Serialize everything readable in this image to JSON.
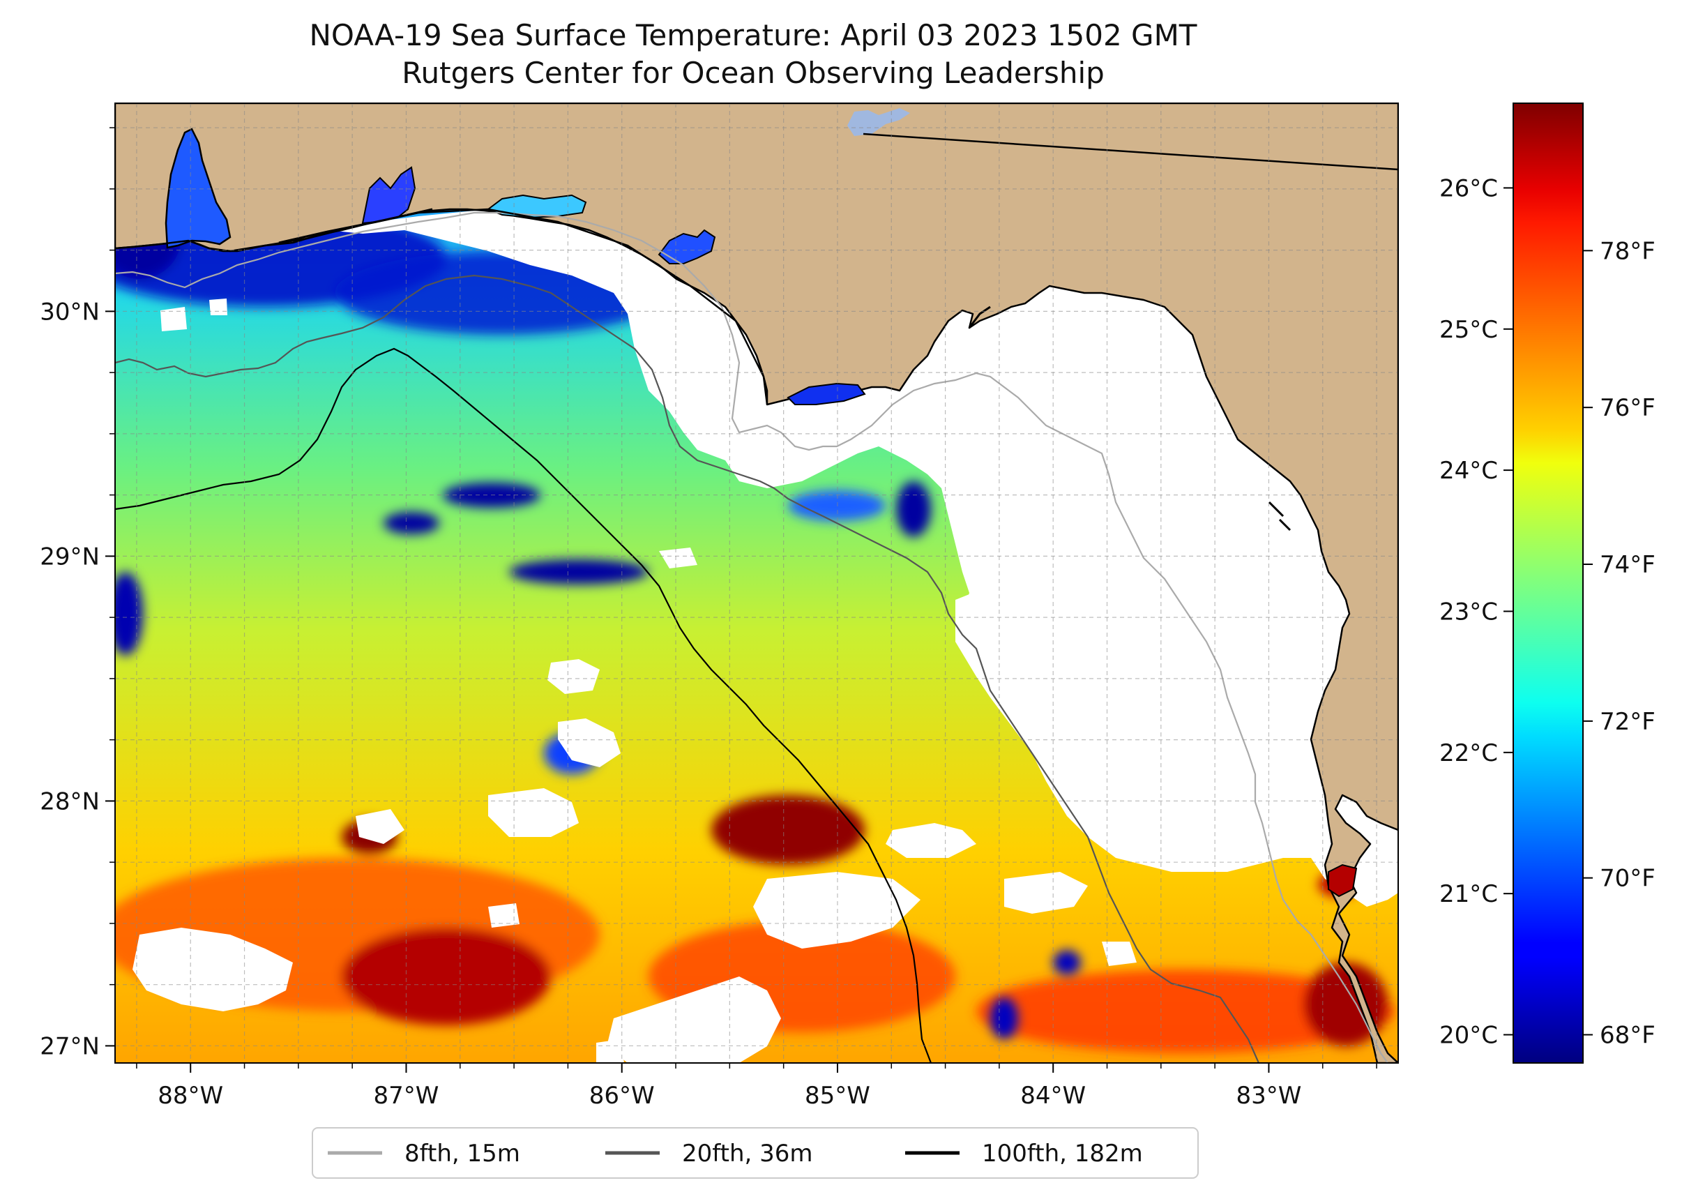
{
  "title": "NOAA-19 Sea Surface Temperature: April 03 2023 1502 GMT",
  "subtitle": "Rutgers Center for Ocean Observing Leadership",
  "map": {
    "lon_range": [
      -88.35,
      -82.4
    ],
    "lat_range": [
      26.93,
      30.85
    ],
    "lon_ticks": [
      {
        "value": -88,
        "label": "88°W"
      },
      {
        "value": -87,
        "label": "87°W"
      },
      {
        "value": -86,
        "label": "86°W"
      },
      {
        "value": -85,
        "label": "85°W"
      },
      {
        "value": -84,
        "label": "84°W"
      },
      {
        "value": -83,
        "label": "83°W"
      }
    ],
    "lat_ticks": [
      {
        "value": 27,
        "label": "27°N"
      },
      {
        "value": 28,
        "label": "28°N"
      },
      {
        "value": 29,
        "label": "29°N"
      },
      {
        "value": 30,
        "label": "30°N"
      }
    ],
    "grid": true,
    "colors": {
      "land": "#d2b48c",
      "no_data": "#ffffff",
      "coast": "#000000"
    }
  },
  "colorbar": {
    "colormap": "jet",
    "celsius_range": [
      19.8,
      26.6
    ],
    "celsius_ticks": [
      {
        "value": 20,
        "label": "20°C"
      },
      {
        "value": 21,
        "label": "21°C"
      },
      {
        "value": 22,
        "label": "22°C"
      },
      {
        "value": 23,
        "label": "23°C"
      },
      {
        "value": 24,
        "label": "24°C"
      },
      {
        "value": 25,
        "label": "25°C"
      },
      {
        "value": 26,
        "label": "26°C"
      }
    ],
    "fahrenheit_ticks": [
      {
        "value": 68,
        "label": "68°F"
      },
      {
        "value": 70,
        "label": "70°F"
      },
      {
        "value": 72,
        "label": "72°F"
      },
      {
        "value": 74,
        "label": "74°F"
      },
      {
        "value": 76,
        "label": "76°F"
      },
      {
        "value": 78,
        "label": "78°F"
      }
    ]
  },
  "legend": {
    "items": [
      {
        "label": "8fth, 15m",
        "color": "#aaaaaa"
      },
      {
        "label": "20fth, 36m",
        "color": "#555555"
      },
      {
        "label": "100fth, 182m",
        "color": "#000000"
      }
    ]
  }
}
